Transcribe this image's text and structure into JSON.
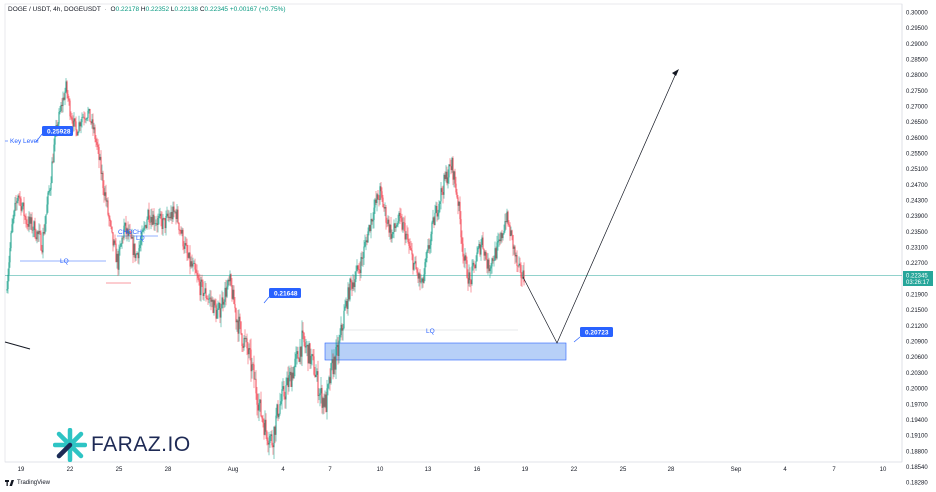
{
  "header": {
    "symbol": "DOGE / USDT, 4h, DOGEUSDT",
    "o_label": "O",
    "o_value": "0.22178",
    "h_label": "H",
    "h_value": "0.22352",
    "l_label": "L",
    "l_value": "0.22138",
    "c_label": "C",
    "c_value": "0.22345",
    "change": "+0.00167 (+0.75%)"
  },
  "footer": {
    "brand": "TradingView"
  },
  "logo": {
    "text": "FARAZ.IO"
  },
  "chart_data": {
    "type": "candlestick",
    "y_axis": {
      "ticks": [
        0.3,
        0.295,
        0.29,
        0.285,
        0.28,
        0.275,
        0.27,
        0.265,
        0.26,
        0.255,
        0.251,
        0.247,
        0.243,
        0.239,
        0.235,
        0.231,
        0.227,
        0.223,
        0.219,
        0.215,
        0.212,
        0.209,
        0.206,
        0.203,
        0.2,
        0.197,
        0.194,
        0.191,
        0.188,
        0.1854,
        0.1828
      ],
      "tick_labels": [
        "0.30000",
        "0.29500",
        "0.29000",
        "0.28500",
        "0.28000",
        "0.27500",
        "0.27000",
        "0.26500",
        "0.26000",
        "0.25500",
        "0.25100",
        "0.24700",
        "0.24300",
        "0.23900",
        "0.23500",
        "0.23100",
        "0.22700",
        "0.22300",
        "0.21900",
        "0.21500",
        "0.21200",
        "0.20900",
        "0.20600",
        "0.20300",
        "0.20000",
        "0.19700",
        "0.19400",
        "0.19100",
        "0.18800",
        "0.18540",
        "0.18280"
      ],
      "last_price": "0.22345",
      "countdown": "03:26:17"
    },
    "x_axis": {
      "tick_labels": [
        "19",
        "22",
        "25",
        "28",
        "Aug",
        "4",
        "7",
        "10",
        "13",
        "16",
        "19",
        "22",
        "25",
        "28",
        "Sep",
        "4",
        "7",
        "10"
      ]
    },
    "candle_anchors": [
      [
        0,
        0.22
      ],
      [
        6,
        0.236
      ],
      [
        12,
        0.245
      ],
      [
        20,
        0.238
      ],
      [
        28,
        0.236
      ],
      [
        36,
        0.232
      ],
      [
        44,
        0.247
      ],
      [
        50,
        0.262
      ],
      [
        56,
        0.271
      ],
      [
        60,
        0.276
      ],
      [
        64,
        0.269
      ],
      [
        70,
        0.262
      ],
      [
        76,
        0.267
      ],
      [
        82,
        0.268
      ],
      [
        88,
        0.262
      ],
      [
        94,
        0.252
      ],
      [
        100,
        0.243
      ],
      [
        106,
        0.233
      ],
      [
        112,
        0.227
      ],
      [
        118,
        0.236
      ],
      [
        124,
        0.233
      ],
      [
        130,
        0.229
      ],
      [
        136,
        0.233
      ],
      [
        142,
        0.24
      ],
      [
        150,
        0.238
      ],
      [
        158,
        0.237
      ],
      [
        164,
        0.239
      ],
      [
        170,
        0.24
      ],
      [
        176,
        0.234
      ],
      [
        182,
        0.228
      ],
      [
        188,
        0.225
      ],
      [
        194,
        0.221
      ],
      [
        200,
        0.219
      ],
      [
        206,
        0.217
      ],
      [
        212,
        0.214
      ],
      [
        218,
        0.219
      ],
      [
        224,
        0.222
      ],
      [
        230,
        0.214
      ],
      [
        236,
        0.21
      ],
      [
        242,
        0.207
      ],
      [
        248,
        0.202
      ],
      [
        254,
        0.196
      ],
      [
        260,
        0.192
      ],
      [
        266,
        0.19
      ],
      [
        272,
        0.196
      ],
      [
        278,
        0.199
      ],
      [
        284,
        0.202
      ],
      [
        290,
        0.205
      ],
      [
        296,
        0.209
      ],
      [
        302,
        0.207
      ],
      [
        308,
        0.204
      ],
      [
        314,
        0.199
      ],
      [
        320,
        0.197
      ],
      [
        326,
        0.204
      ],
      [
        332,
        0.207
      ],
      [
        338,
        0.214
      ],
      [
        344,
        0.221
      ],
      [
        350,
        0.224
      ],
      [
        356,
        0.228
      ],
      [
        362,
        0.235
      ],
      [
        368,
        0.241
      ],
      [
        374,
        0.245
      ],
      [
        380,
        0.239
      ],
      [
        386,
        0.234
      ],
      [
        392,
        0.238
      ],
      [
        398,
        0.236
      ],
      [
        404,
        0.23
      ],
      [
        410,
        0.225
      ],
      [
        416,
        0.221
      ],
      [
        422,
        0.23
      ],
      [
        428,
        0.238
      ],
      [
        434,
        0.244
      ],
      [
        440,
        0.249
      ],
      [
        446,
        0.252
      ],
      [
        452,
        0.243
      ],
      [
        458,
        0.228
      ],
      [
        464,
        0.222
      ],
      [
        470,
        0.228
      ],
      [
        476,
        0.233
      ],
      [
        482,
        0.226
      ],
      [
        488,
        0.229
      ],
      [
        494,
        0.232
      ],
      [
        500,
        0.239
      ],
      [
        506,
        0.233
      ],
      [
        512,
        0.225
      ],
      [
        518,
        0.2234
      ]
    ],
    "annotations": {
      "key_level_label": "Key Level",
      "key_level_price": "0.25928",
      "choch_label": "CHOCH",
      "lq_label_1": "LQ",
      "lq_label_2": "LQ",
      "lq_label_3": "LQ",
      "callout_mid": "0.21648",
      "callout_target": "0.20723"
    },
    "colors": {
      "up": "#089981",
      "down": "#f23645",
      "accent": "#2962ff",
      "zone_fill": "#9fc0f5",
      "price_line": "#26a69a"
    }
  }
}
